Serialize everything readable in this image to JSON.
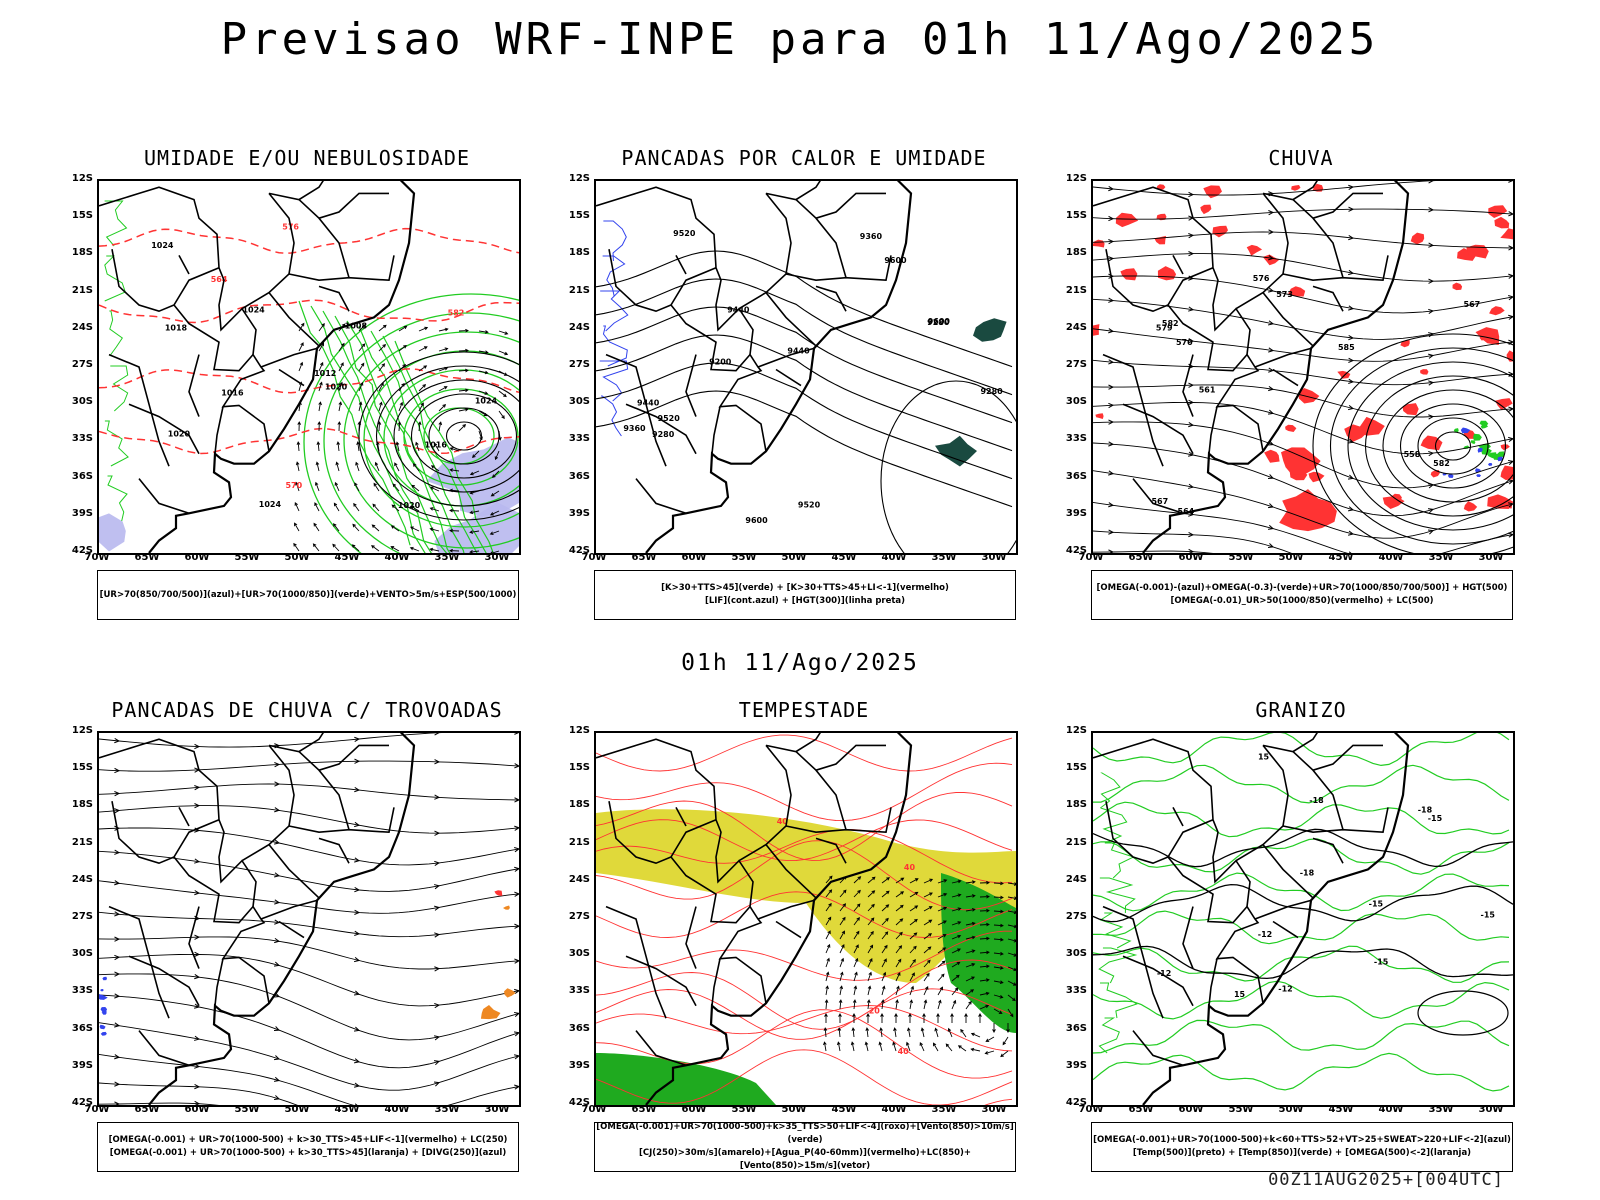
{
  "title": "Previsao WRF-INPE  para 01h 11/Ago/2025",
  "subtitle": "01h 11/Ago/2025",
  "footer": "00Z11AUG2025+[004UTC]",
  "axes": {
    "lat_ticks": [
      "12S",
      "15S",
      "18S",
      "21S",
      "24S",
      "27S",
      "30S",
      "33S",
      "36S",
      "39S",
      "42S"
    ],
    "lon_ticks": [
      "70W",
      "65W",
      "60W",
      "55W",
      "50W",
      "45W",
      "40W",
      "35W",
      "30W"
    ]
  },
  "colors": {
    "green": "#22cc22",
    "red": "#ff3333",
    "blue": "#3344ee",
    "lavender": "#b8b8ee",
    "yellow": "#e0d93a",
    "orange": "#ee8822",
    "dark_teal": "#1a4a40",
    "black": "#000000"
  },
  "panels": [
    {
      "id": "umidade",
      "title": "UMIDADE E/OU NEBULOSIDADE",
      "legend": [
        "[UR>70(850/700/500)](azul)+[UR>70(1000/850)](verde)+VENTO>5m/s+ESP(500/1000)"
      ],
      "contour_labels": [
        "1016",
        "1020",
        "1024",
        "1024",
        "1020",
        "1018",
        "1016",
        "1012",
        "1008",
        "1024",
        "1024",
        "1020",
        "570",
        "576",
        "582",
        "564"
      ]
    },
    {
      "id": "pancadas-calor",
      "title": "PANCADAS POR CALOR E UMIDADE",
      "legend": [
        "[K>30+TTS>45](verde) + [K>30+TTS>45+LI<-1](vermelho)",
        "[LIF](cont.azul) + [HGT(300)](linha preta)"
      ],
      "contour_labels": [
        "9600",
        "9520",
        "9600",
        "9600",
        "9520",
        "9440",
        "9520",
        "9440",
        "9360",
        "9440",
        "9360",
        "9280",
        "9280",
        "9200",
        "9280"
      ]
    },
    {
      "id": "chuva",
      "title": "CHUVA",
      "legend": [
        "[OMEGA(-0.001)-(azul)+OMEGA(-0.3)-(verde)+UR>70(1000/850/700/500)] + HGT(500)",
        "[OMEGA(-0.01)_UR>50(1000/850)(vermelho) + LC(500)"
      ],
      "contour_labels": [
        "585",
        "582",
        "582",
        "579",
        "576",
        "573",
        "570",
        "567",
        "558",
        "567",
        "564",
        "561"
      ]
    },
    {
      "id": "pancadas-trovoadas",
      "title": "PANCADAS DE CHUVA C/ TROVOADAS",
      "legend": [
        "[OMEGA(-0.001) + UR>70(1000-500) + k>30_TTS>45+LIF<-1](vermelho) + LC(250)",
        "[OMEGA(-0.001) + UR>70(1000-500) + k>30_TTS>45](laranja) + [DIVG(250)](azul)"
      ]
    },
    {
      "id": "tempestade",
      "title": "TEMPESTADE",
      "legend": [
        "[OMEGA(-0.001)+UR>70(1000-500)+k>35_TTS>50+LIF<-4](roxo)+[Vento(850)>10m/s](verde)",
        "[CJ(250)>30m/s](amarelo)+[Agua_P(40-60mm)](vermelho)+LC(850)+[Vento(850)>15m/s](vetor)"
      ],
      "contour_labels": [
        "40",
        "40",
        "40",
        "20"
      ]
    },
    {
      "id": "granizo",
      "title": "GRANIZO",
      "legend": [
        "[OMEGA(-0.001)+UR>70(1000-500)+k<60+TTS>52+VT>25+SWEAT>220+LIF<-2](azul)",
        "[Temp(500)](preto) + [Temp(850)](verde) + [OMEGA(500)<-2](laranja)"
      ],
      "contour_labels": [
        "-12",
        "-12",
        "-12",
        "-15",
        "-15",
        "-18",
        "-18",
        "-18",
        "-15",
        "-15",
        "15",
        "15"
      ]
    }
  ]
}
